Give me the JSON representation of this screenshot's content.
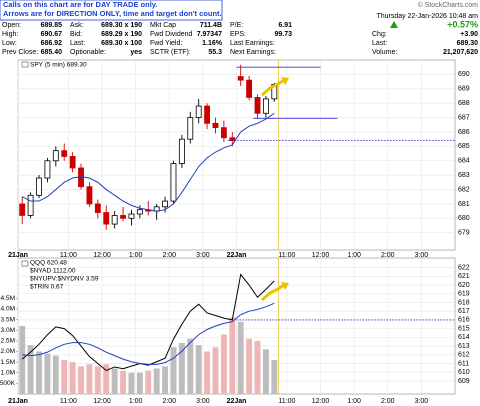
{
  "header": {
    "notice": [
      "Calls on this chart are for DAY TRADE only.",
      "Arrows are for DIRECTION ONLY, time and target don't count."
    ],
    "site": "© StockCharts.com",
    "datetime": "Thursday 22-Jan-2026 10:48 am",
    "change_pct": "+0.57%",
    "quote": [
      [
        [
          "Open:",
          "689.85"
        ],
        [
          "High:",
          "690.67"
        ],
        [
          "Low:",
          "686.92"
        ],
        [
          "Prev Close:",
          "685.40"
        ]
      ],
      [
        [
          "Ask:",
          "689.30 x 190"
        ],
        [
          "Bid:",
          "689.29 x 190"
        ],
        [
          "Last:",
          "689.30 x 100"
        ],
        [
          "Optionable:",
          "yes"
        ]
      ],
      [
        [
          "Mkt Cap",
          "711.4B"
        ],
        [
          "Fwd Dividend",
          "7.97347"
        ],
        [
          "Fwd Yield:",
          "1.16%"
        ],
        [
          "SCTR (ETF):",
          "55.3"
        ]
      ],
      [
        [
          "P/E:",
          "6.91"
        ],
        [
          "EPS:",
          "99.73"
        ],
        [
          "Last Earnings:",
          ""
        ],
        [
          "Next Earnings:",
          ""
        ]
      ],
      [
        [
          "Chg:",
          "+3.90"
        ],
        [
          "Last:",
          "689.30"
        ],
        [
          "Volume:",
          "21,207,620"
        ]
      ]
    ]
  },
  "chart_data": [
    {
      "type": "candlestick",
      "legend": "SPY (5 min) 689.30",
      "x": [
        0,
        1,
        2,
        3,
        4,
        5,
        6,
        7,
        8,
        9,
        10,
        11,
        12,
        13,
        14,
        15,
        16,
        17,
        18,
        19,
        20,
        21,
        22,
        23,
        24,
        25,
        26,
        27,
        28,
        29,
        30
      ],
      "open": [
        681.0,
        680.2,
        681.6,
        682.8,
        684.0,
        684.7,
        684.3,
        683.5,
        682.2,
        681.0,
        680.4,
        679.6,
        680.2,
        680.0,
        680.3,
        680.6,
        680.5,
        680.8,
        681.2,
        683.8,
        685.5,
        687.0,
        687.8,
        686.6,
        686.3,
        685.6,
        689.85,
        689.6,
        688.4,
        687.3,
        688.3
      ],
      "high": [
        681.5,
        681.8,
        683.0,
        684.2,
        685.0,
        685.2,
        684.6,
        683.8,
        682.5,
        681.3,
        680.9,
        680.5,
        680.8,
        680.6,
        680.9,
        681.2,
        681.0,
        681.5,
        684.0,
        685.8,
        687.4,
        688.3,
        688.0,
        687.0,
        686.8,
        686.0,
        690.67,
        689.9,
        688.6,
        688.5,
        689.4
      ],
      "low": [
        679.6,
        680.0,
        681.4,
        682.5,
        683.6,
        684.0,
        683.2,
        682.0,
        680.8,
        680.0,
        679.2,
        679.3,
        679.8,
        679.5,
        680.0,
        680.2,
        679.9,
        680.4,
        681.0,
        683.5,
        685.2,
        686.6,
        686.2,
        685.9,
        685.3,
        685.0,
        689.2,
        688.2,
        686.92,
        687.0,
        688.1
      ],
      "close": [
        680.2,
        681.6,
        682.8,
        684.0,
        684.7,
        684.3,
        683.5,
        682.2,
        681.0,
        680.4,
        679.6,
        680.2,
        680.0,
        680.3,
        680.6,
        680.5,
        680.8,
        681.2,
        683.8,
        685.5,
        687.0,
        687.8,
        686.6,
        686.3,
        685.6,
        685.4,
        689.6,
        688.4,
        687.3,
        688.3,
        689.3
      ],
      "up_color": "#000000",
      "down_color": "#cc0000",
      "series": [
        {
          "color": "#1f3fbf",
          "values": [
            681.5,
            681.2,
            681.2,
            681.5,
            682.0,
            682.5,
            682.8,
            682.9,
            682.8,
            682.5,
            682.0,
            681.6,
            681.2,
            680.9,
            680.7,
            680.6,
            680.5,
            680.6,
            681.0,
            681.8,
            682.7,
            683.6,
            684.2,
            684.6,
            684.9,
            685.1,
            686.0,
            686.4,
            686.6,
            686.9,
            687.3
          ]
        }
      ],
      "levels": [
        {
          "value": 690.5,
          "x": [
            26,
            36
          ]
        },
        {
          "value": 686.95,
          "x": [
            28,
            38
          ]
        },
        {
          "value": 685.4,
          "x": [
            25,
            52
          ],
          "dotted": true
        }
      ],
      "level_color": "#3333cc",
      "xlim": [
        0,
        52
      ],
      "xticks": [
        {
          "value": 0,
          "label": "21Jan"
        },
        {
          "value": 6,
          "label": "11:00"
        },
        {
          "value": 10,
          "label": "12:00"
        },
        {
          "value": 14,
          "label": "1:00"
        },
        {
          "value": 18,
          "label": "2:00"
        },
        {
          "value": 22,
          "label": "3:00"
        },
        {
          "value": 26,
          "label": "22Jan"
        },
        {
          "value": 32,
          "label": "11:00"
        },
        {
          "value": 36,
          "label": "12:00"
        },
        {
          "value": 40,
          "label": "1:00"
        },
        {
          "value": 44,
          "label": "2:00"
        },
        {
          "value": 48,
          "label": "3:00"
        }
      ],
      "ylim": [
        677.8,
        691.0
      ],
      "yticks": [
        679,
        680,
        681,
        682,
        683,
        684,
        685,
        686,
        687,
        688,
        689,
        690
      ],
      "grid": true
    },
    {
      "type": "line",
      "legend": [
        "QQQ 620.48",
        "$NYAD 1112.00",
        "$NYUPV:$NYDNV 3.59",
        "$TRIN 0.67"
      ],
      "x": [
        0,
        1,
        2,
        3,
        4,
        5,
        6,
        7,
        8,
        9,
        10,
        11,
        12,
        13,
        14,
        15,
        16,
        17,
        18,
        19,
        20,
        21,
        22,
        23,
        24,
        25,
        26,
        27,
        28,
        29,
        30
      ],
      "series": [
        {
          "color": "#000000",
          "values": [
            611.5,
            612.3,
            613.2,
            614.3,
            615.2,
            615.0,
            614.2,
            613.0,
            611.8,
            611.0,
            610.2,
            610.6,
            610.4,
            610.7,
            611.0,
            610.8,
            611.2,
            611.6,
            613.8,
            615.5,
            617.0,
            617.8,
            616.8,
            616.5,
            616.2,
            616.0,
            621.2,
            620.0,
            618.6,
            619.5,
            620.48
          ]
        },
        {
          "color": "#1f3fbf",
          "values": [
            612.0,
            611.9,
            612.0,
            612.3,
            612.8,
            613.2,
            613.4,
            613.4,
            613.2,
            612.8,
            612.3,
            611.9,
            611.5,
            611.2,
            611.0,
            610.9,
            610.9,
            611.1,
            611.6,
            612.4,
            613.4,
            614.3,
            614.9,
            615.3,
            615.6,
            615.8,
            616.6,
            617.0,
            617.2,
            617.5,
            617.9
          ]
        },
        {
          "type": "bar",
          "axis": "y2",
          "color": "#bdbdbd",
          "down_color": "#efb5b5",
          "values": [
            3200000,
            2300000,
            2000000,
            1900000,
            1800000,
            1600000,
            1500000,
            1300000,
            1400000,
            1300000,
            1400000,
            1200000,
            1100000,
            1000000,
            1000000,
            1100000,
            1200000,
            1300000,
            2200000,
            2400000,
            2600000,
            2300000,
            2000000,
            2200000,
            2800000,
            3600000,
            3400000,
            2600000,
            2500000,
            2100000,
            1600000
          ]
        }
      ],
      "levels": [
        {
          "value": 616.0,
          "x": [
            26,
            52
          ],
          "dotted": true
        }
      ],
      "level_color": "#3333cc",
      "xlim": [
        0,
        52
      ],
      "xticks": [
        {
          "value": 0,
          "label": "21Jan"
        },
        {
          "value": 6,
          "label": "11:00"
        },
        {
          "value": 10,
          "label": "12:00"
        },
        {
          "value": 14,
          "label": "1:00"
        },
        {
          "value": 18,
          "label": "2:00"
        },
        {
          "value": 22,
          "label": "3:00"
        },
        {
          "value": 26,
          "label": "22Jan"
        },
        {
          "value": 32,
          "label": "11:00"
        },
        {
          "value": 36,
          "label": "12:00"
        },
        {
          "value": 40,
          "label": "1:00"
        },
        {
          "value": 44,
          "label": "2:00"
        },
        {
          "value": 48,
          "label": "3:00"
        }
      ],
      "ylim": [
        607.5,
        623.1
      ],
      "yticks": [
        609,
        610,
        611,
        612,
        613,
        614,
        615,
        616,
        617,
        618,
        619,
        620,
        621,
        622
      ],
      "y2lim": [
        0,
        6400000
      ],
      "y2ticks": [
        {
          "value": 500000,
          "label": "500K"
        },
        {
          "value": 1000000,
          "label": "1.0M"
        },
        {
          "value": 1500000,
          "label": "1.5M"
        },
        {
          "value": 2000000,
          "label": "2.0M"
        },
        {
          "value": 2500000,
          "label": "2.5M"
        },
        {
          "value": 3000000,
          "label": "3.0M"
        },
        {
          "value": 3500000,
          "label": "3.5M"
        },
        {
          "value": 4000000,
          "label": "4.0M"
        },
        {
          "value": 4500000,
          "label": "4.5M"
        }
      ],
      "grid": true
    }
  ]
}
